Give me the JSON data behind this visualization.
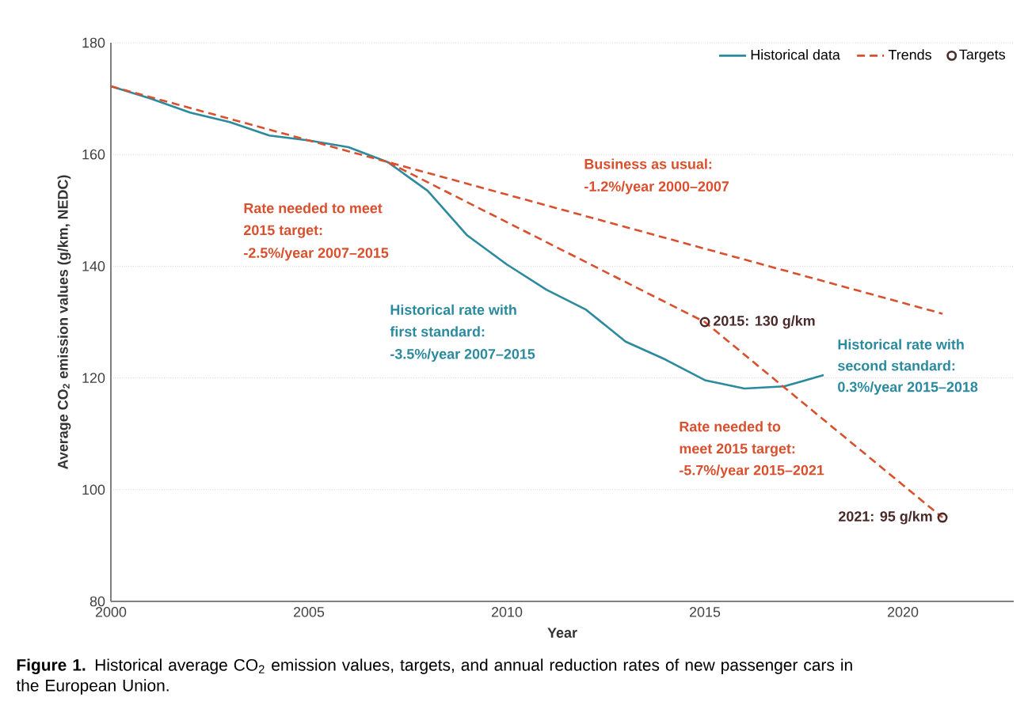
{
  "chart_data": {
    "type": "line",
    "xlabel": "Year",
    "ylabel": "Average CO$_{2}$ emission values (g/km, NEDC)",
    "xlim": [
      2000,
      2022.8
    ],
    "xticks": [
      2000,
      2005,
      2010,
      2015,
      2020
    ],
    "ylim": [
      80,
      180
    ],
    "yticks": [
      80,
      100,
      120,
      140,
      160,
      180
    ],
    "grid": "y",
    "legend": "top right",
    "series": [
      {
        "name": "Historical data",
        "color": "#2b8a9e",
        "line_style": "solid",
        "marker": "none",
        "x": [
          2000,
          2001,
          2002,
          2003,
          2004,
          2005,
          2006,
          2007,
          2008,
          2009,
          2010,
          2011,
          2012,
          2013,
          2014,
          2015,
          2016,
          2017,
          2018
        ],
        "values": [
          172.2,
          170,
          167.5,
          165.8,
          163.4,
          162.5,
          161.3,
          158.6,
          153.5,
          145.5,
          140.3,
          135.8,
          132.2,
          126.5,
          123.3,
          119.6,
          118.1,
          118.5,
          120.5
        ]
      },
      {
        "name": "Trends",
        "color": "#d9502e",
        "line_style": "dashed",
        "marker": "none",
        "x": [
          2000,
          2021
        ],
        "values": [
          172.2,
          131.5
        ]
      },
      {
        "color": "#d9502e",
        "line_style": "dashed",
        "marker": "none",
        "x": [
          2007,
          2015,
          2021
        ],
        "values": [
          158.6,
          130,
          95
        ]
      },
      {
        "name": "Targets",
        "type": "scatter",
        "color": "#4a2a2a",
        "marker": "circle",
        "x": [
          2015,
          2021
        ],
        "values": [
          130,
          95
        ]
      }
    ],
    "annotations": [
      "Business as usual:",
      "-1.2%/year 2000–2007",
      "Rate needed to meet",
      "2015 target:",
      "-2.5%/year 2007–2015",
      "Historical rate with",
      "first standard:",
      "-3.5%/year 2007–2015",
      "Historical rate with",
      "second standard:",
      "0.3%/year 2015–2018",
      "Rate needed to",
      "meet 2015 target:",
      "-5.7%/year 2015–2021",
      {
        "text": "2015: 130 g/km",
        "x": 2015,
        "y": 130
      },
      {
        "text": "2021: 95 g/km",
        "x": 2021,
        "y": 95
      },
      "**Figure 1.** Historical average CO$_{2}$ emission values, targets, and annual reduction rates of new passenger cars in the European Union."
    ]
  }
}
